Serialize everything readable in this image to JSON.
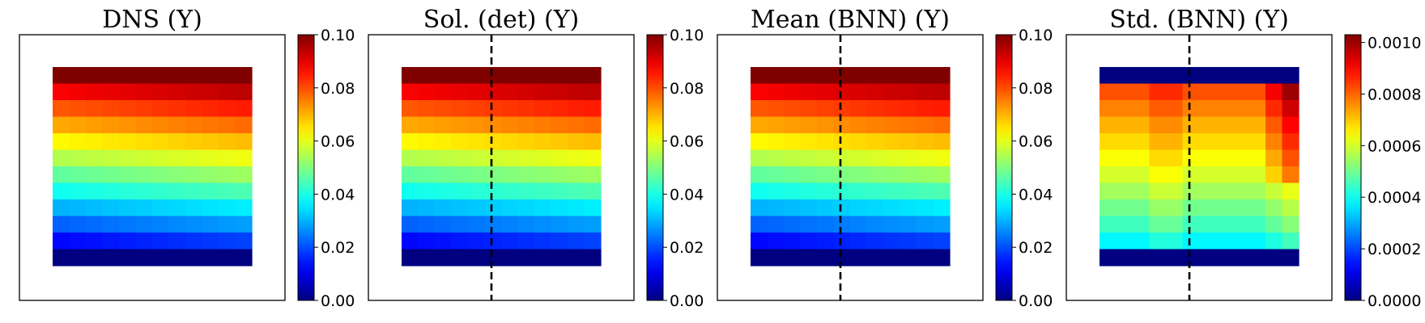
{
  "chart_data": [
    {
      "type": "heatmap",
      "title": "DNS (Y)",
      "grid": "12x12",
      "colormap": "jet",
      "clim": [
        0.0,
        0.1
      ],
      "colorbar_ticks": [
        "0.00",
        "0.02",
        "0.04",
        "0.06",
        "0.08",
        "0.10"
      ],
      "dashed_centerline": false,
      "row_values": [
        0.1,
        0.091,
        0.082,
        0.074,
        0.066,
        0.058,
        0.05,
        0.042,
        0.033,
        0.025,
        0.016,
        0.0
      ],
      "column_trend": 0.006
    },
    {
      "type": "heatmap",
      "title": "Sol. (det) (Y)",
      "grid": "12x12",
      "colormap": "jet",
      "clim": [
        0.0,
        0.1
      ],
      "colorbar_ticks": [
        "0.00",
        "0.02",
        "0.04",
        "0.06",
        "0.08",
        "0.10"
      ],
      "dashed_centerline": true,
      "row_values": [
        0.1,
        0.091,
        0.082,
        0.074,
        0.066,
        0.058,
        0.05,
        0.042,
        0.033,
        0.025,
        0.016,
        0.0
      ],
      "column_trend": 0.006
    },
    {
      "type": "heatmap",
      "title": "Mean (BNN) (Y)",
      "grid": "12x12",
      "colormap": "jet",
      "clim": [
        0.0,
        0.1
      ],
      "colorbar_ticks": [
        "0.00",
        "0.02",
        "0.04",
        "0.06",
        "0.08",
        "0.10"
      ],
      "dashed_centerline": true,
      "row_values": [
        0.1,
        0.091,
        0.082,
        0.074,
        0.066,
        0.058,
        0.05,
        0.042,
        0.033,
        0.025,
        0.016,
        0.0
      ],
      "column_trend": 0.006
    },
    {
      "type": "heatmap",
      "title": "Std. (BNN) (Y)",
      "grid": "12x12",
      "colormap": "jet",
      "clim": [
        0.0,
        0.00103
      ],
      "colorbar_ticks": [
        "0.0000",
        "0.0002",
        "0.0004",
        "0.0006",
        "0.0008",
        "0.0010"
      ],
      "dashed_centerline": true,
      "row_values": [
        0.0,
        0.00082,
        0.00077,
        0.00072,
        0.00068,
        0.00064,
        0.0006,
        0.00055,
        0.0005,
        0.00045,
        0.00038,
        0.0
      ],
      "column_trend": 0.0
    }
  ]
}
